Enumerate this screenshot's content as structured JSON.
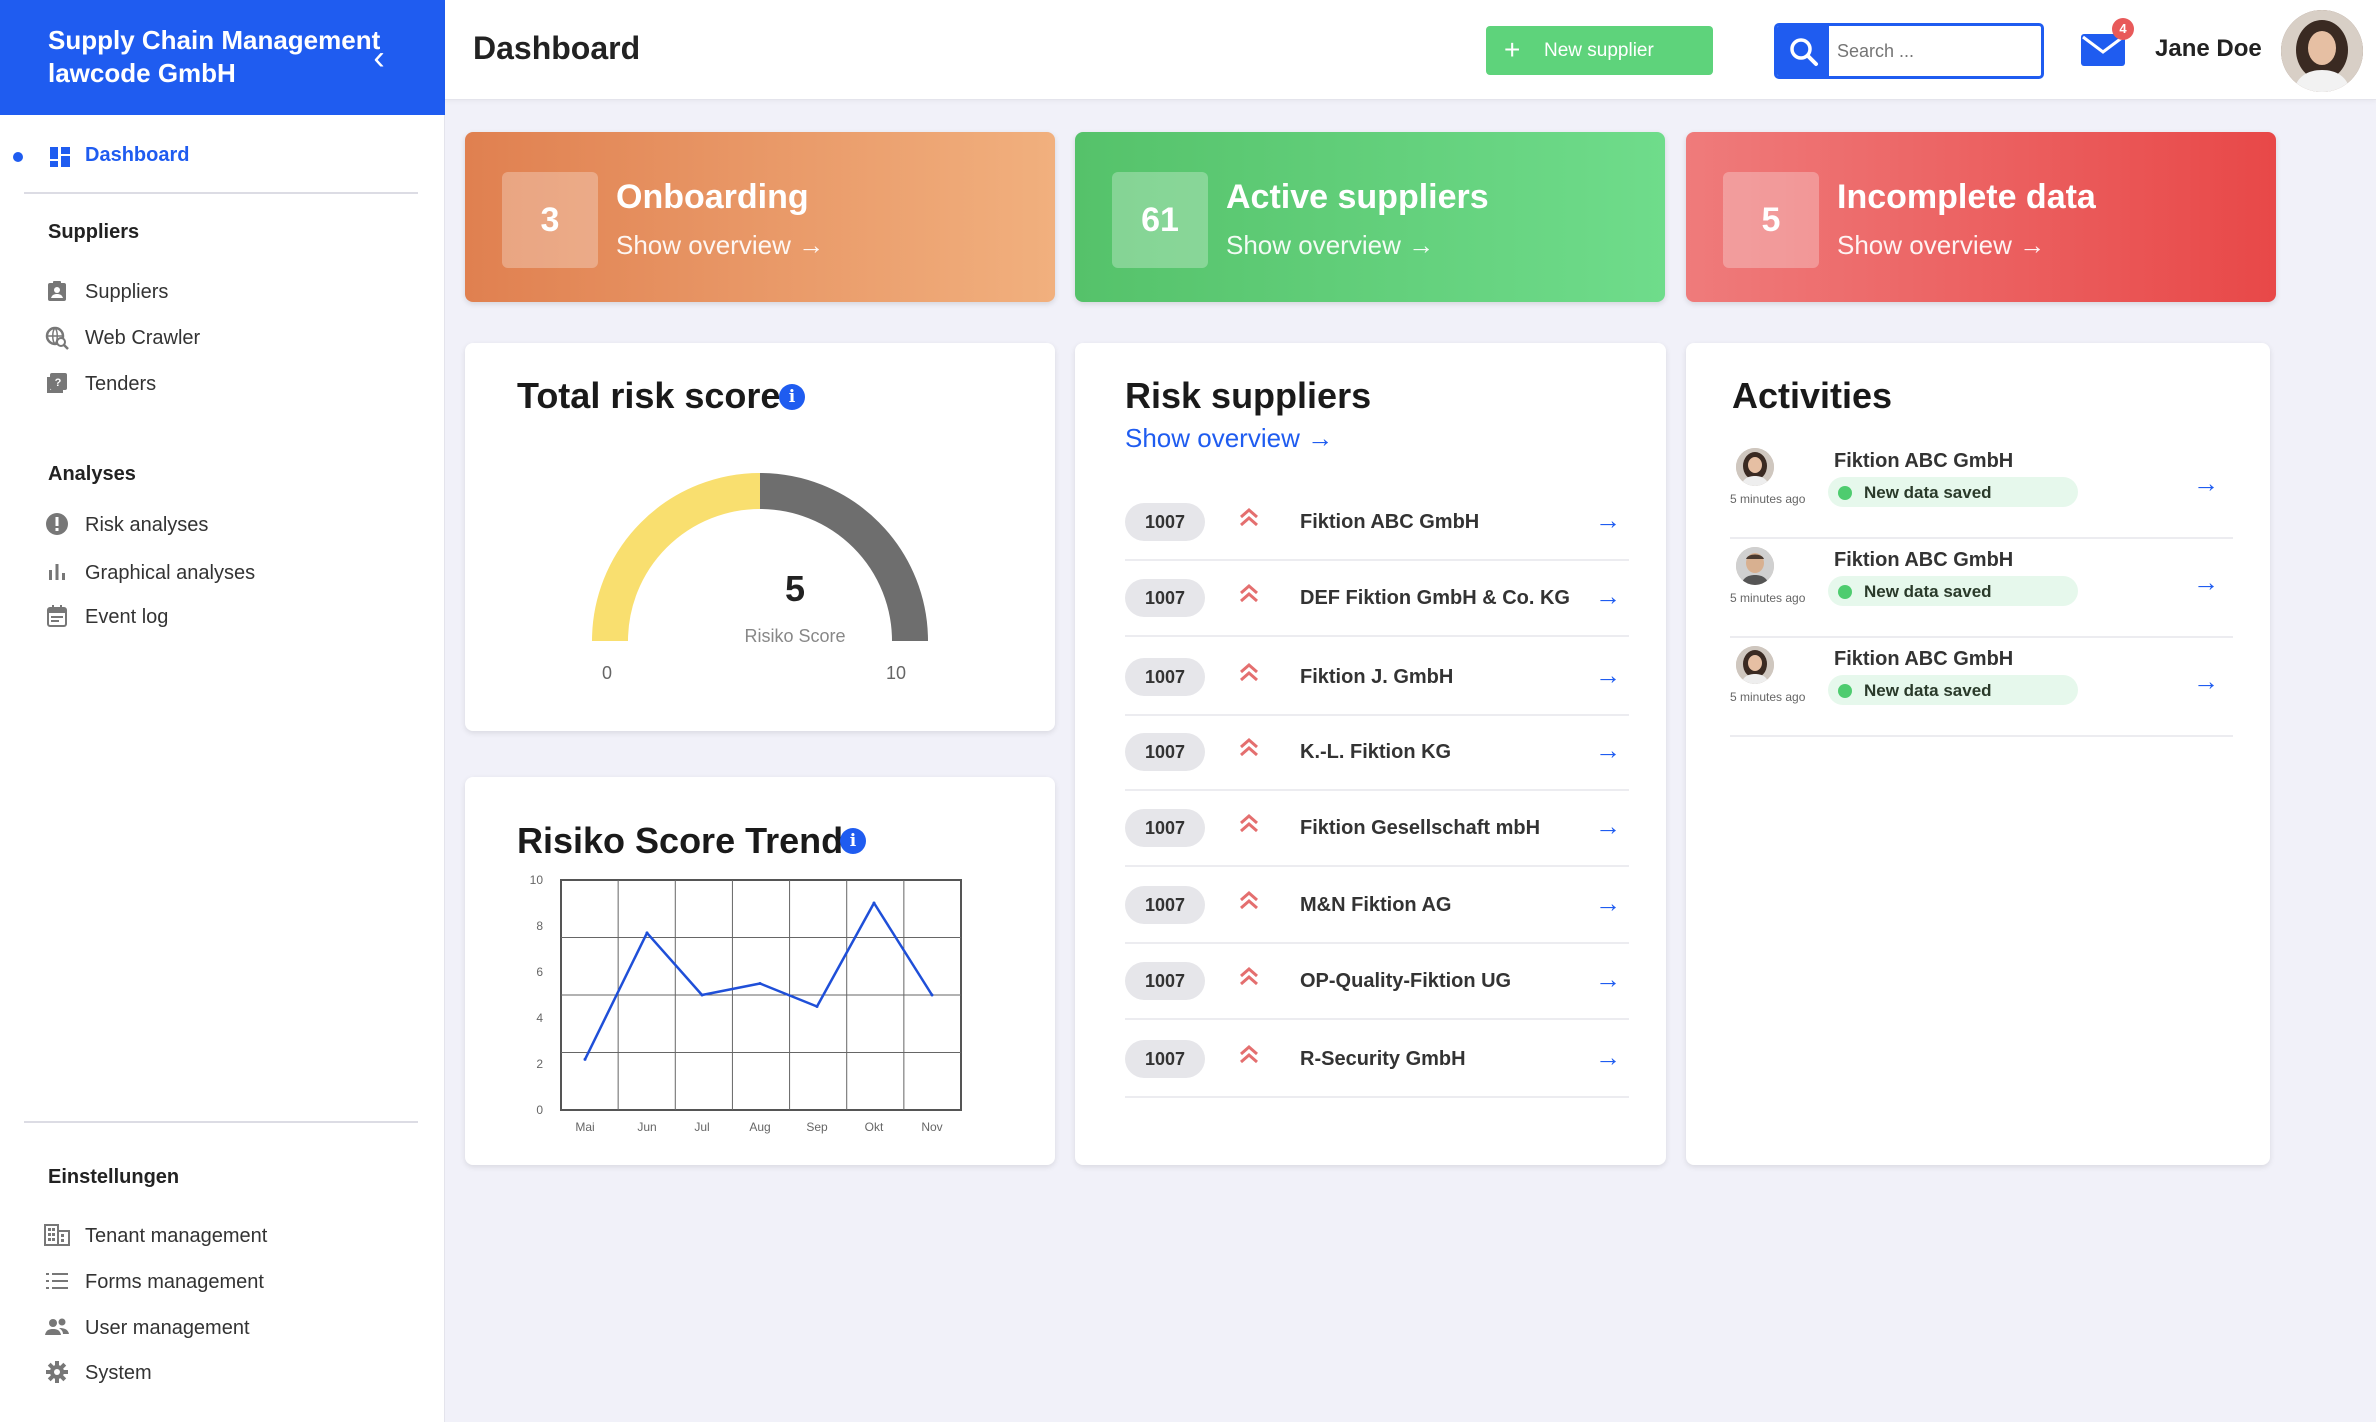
{
  "sidebar": {
    "brand_line1": "Supply Chain Management",
    "brand_line2": "lawcode GmbH",
    "collapse_glyph": "‹",
    "active_item": {
      "label": "Dashboard",
      "icon": "dashboard-icon"
    },
    "sections": [
      {
        "title": "Suppliers",
        "items": [
          {
            "label": "Suppliers",
            "icon": "contact-badge-icon"
          },
          {
            "label": "Web Crawler",
            "icon": "web-search-icon"
          },
          {
            "label": "Tenders",
            "icon": "tenders-icon"
          }
        ]
      },
      {
        "title": "Analyses",
        "items": [
          {
            "label": "Risk analyses",
            "icon": "warning-icon"
          },
          {
            "label": "Graphical analyses",
            "icon": "bar-chart-icon"
          },
          {
            "label": "Event log",
            "icon": "calendar-icon"
          }
        ]
      },
      {
        "title": "Einstellungen",
        "items": [
          {
            "label": "Tenant management",
            "icon": "building-icon"
          },
          {
            "label": "Forms management",
            "icon": "list-icon"
          },
          {
            "label": "User management",
            "icon": "users-icon"
          },
          {
            "label": "System",
            "icon": "gear-icon"
          }
        ]
      }
    ]
  },
  "header": {
    "title": "Dashboard",
    "new_supplier_label": "New supplier",
    "search_placeholder": "Search ...",
    "mail_badge": "4",
    "user_name": "Jane Doe"
  },
  "stats": [
    {
      "value": "3",
      "title": "Onboarding",
      "link": "Show overview →"
    },
    {
      "value": "61",
      "title": "Active suppliers",
      "link": "Show overview →"
    },
    {
      "value": "5",
      "title": "Incomplete data",
      "link": "Show overview →"
    }
  ],
  "risk_score": {
    "title": "Total risk score",
    "value": "5",
    "label": "Risiko Score",
    "min": "0",
    "max": "10",
    "colors": {
      "filled": "#f9df6f",
      "remaining": "#6e6e6e"
    }
  },
  "trend": {
    "title": "Risiko Score Trend"
  },
  "chart_data": {
    "type": "line",
    "title": "Risiko Score Trend",
    "categories": [
      "Mai",
      "Jun",
      "Jul",
      "Aug",
      "Sep",
      "Okt",
      "Nov"
    ],
    "series": [
      {
        "values": [
          2.2,
          7.7,
          5.0,
          5.5,
          4.5,
          9.0,
          5.0
        ]
      }
    ],
    "ylim": [
      0,
      10
    ],
    "yticks": [
      "0",
      "2",
      "4",
      "6",
      "8",
      "10"
    ],
    "grid": true,
    "color": "#1f4fd8"
  },
  "risk_suppliers": {
    "title": "Risk suppliers",
    "show_overview": "Show overview →",
    "rows": [
      {
        "id": "1007",
        "name": "Fiktion ABC GmbH"
      },
      {
        "id": "1007",
        "name": "DEF Fiktion GmbH & Co. KG"
      },
      {
        "id": "1007",
        "name": "Fiktion J. GmbH"
      },
      {
        "id": "1007",
        "name": "K.-L. Fiktion KG"
      },
      {
        "id": "1007",
        "name": "Fiktion Gesellschaft mbH"
      },
      {
        "id": "1007",
        "name": "M&N Fiktion AG"
      },
      {
        "id": "1007",
        "name": "OP-Quality-Fiktion UG"
      },
      {
        "id": "1007",
        "name": "R-Security GmbH"
      }
    ],
    "arrow": "→"
  },
  "activities": {
    "title": "Activities",
    "rows": [
      {
        "name": "Fiktion ABC GmbH",
        "status": "New data saved",
        "time": "5 minutes ago"
      },
      {
        "name": "Fiktion ABC GmbH",
        "status": "New data saved",
        "time": "5 minutes ago"
      },
      {
        "name": "Fiktion ABC GmbH",
        "status": "New data saved",
        "time": "5 minutes ago"
      }
    ],
    "arrow": "→"
  }
}
